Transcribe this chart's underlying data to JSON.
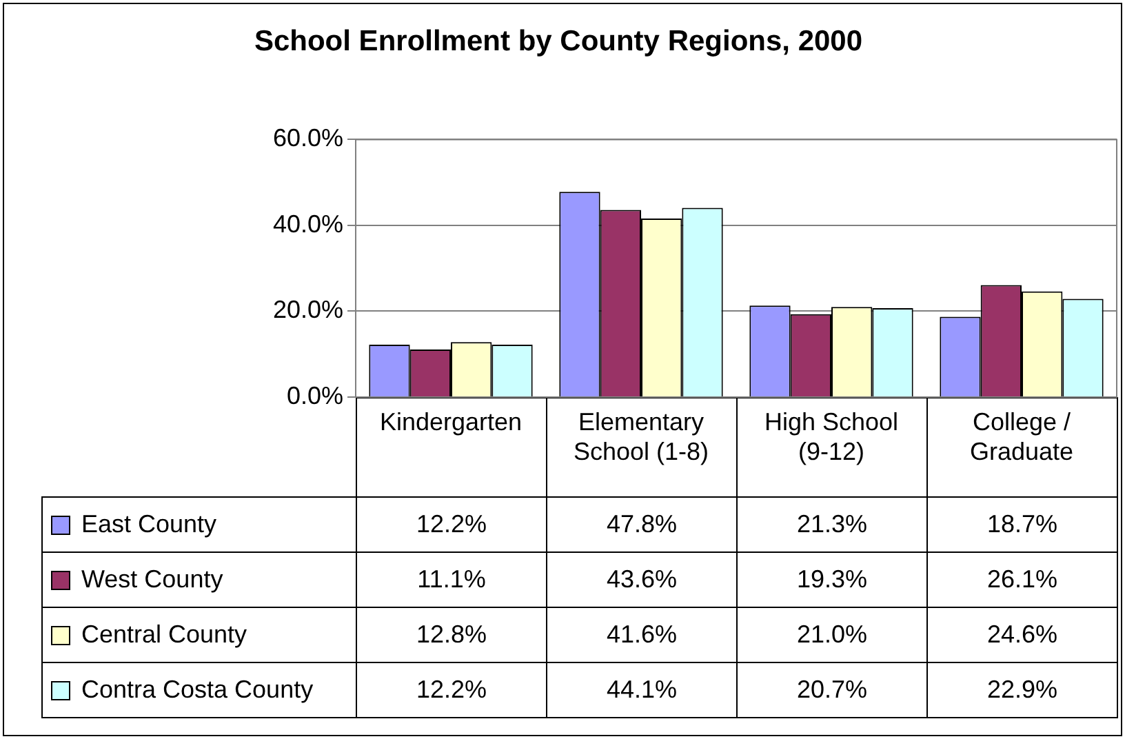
{
  "chart_data": {
    "type": "bar",
    "title": "School Enrollment by County Regions, 2000",
    "categories": [
      "Kindergarten",
      "Elementary School (1-8)",
      "High School (9-12)",
      "College / Graduate"
    ],
    "series": [
      {
        "name": "East County",
        "color": "#9999ff",
        "values": [
          12.2,
          47.8,
          21.3,
          18.7
        ],
        "value_labels": [
          "12.2%",
          "47.8%",
          "21.3%",
          "18.7%"
        ]
      },
      {
        "name": "West County",
        "color": "#993366",
        "values": [
          11.1,
          43.6,
          19.3,
          26.1
        ],
        "value_labels": [
          "11.1%",
          "43.6%",
          "19.3%",
          "26.1%"
        ]
      },
      {
        "name": "Central County",
        "color": "#ffffcc",
        "values": [
          12.8,
          41.6,
          21.0,
          24.6
        ],
        "value_labels": [
          "12.8%",
          "41.6%",
          "21.0%",
          "24.6%"
        ]
      },
      {
        "name": "Contra Costa County",
        "color": "#ccffff",
        "values": [
          12.2,
          44.1,
          20.7,
          22.9
        ],
        "value_labels": [
          "12.2%",
          "44.1%",
          "20.7%",
          "22.9%"
        ]
      }
    ],
    "ylim": [
      0,
      60
    ],
    "yticks": [
      {
        "value": 0,
        "label": "0.0%"
      },
      {
        "value": 20,
        "label": "20.0%"
      },
      {
        "value": 40,
        "label": "40.0%"
      },
      {
        "value": 60,
        "label": "60.0%"
      }
    ],
    "grid": "y",
    "legend": "bottom"
  }
}
